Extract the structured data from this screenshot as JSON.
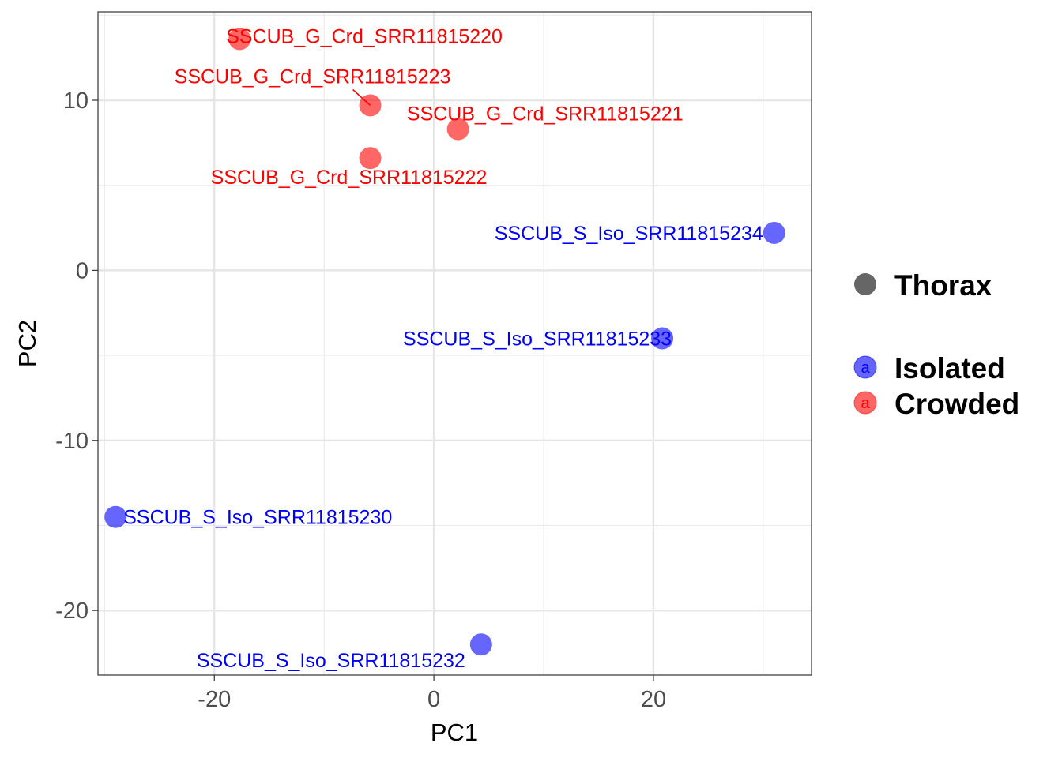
{
  "chart_data": {
    "type": "scatter",
    "title": "",
    "xlabel": "PC1",
    "ylabel": "PC2",
    "xlim": [
      -30.6,
      34.4
    ],
    "ylim": [
      -23.8,
      15.2
    ],
    "x_ticks": [
      -20,
      0,
      20
    ],
    "y_ticks": [
      -20,
      -10,
      0,
      10
    ],
    "x_tick_labels": [
      "-20",
      "0",
      "20"
    ],
    "y_tick_labels": [
      "-20",
      "-10",
      "0",
      "10"
    ],
    "grid": true,
    "shape_legend": {
      "title": "",
      "entries": [
        "Thorax"
      ]
    },
    "color_legend": {
      "entries": [
        {
          "name": "Isolated",
          "color": "#0000ff",
          "key_letter": "a"
        },
        {
          "name": "Crowded",
          "color": "#ff0000",
          "key_letter": "a"
        }
      ]
    },
    "legend_position": "right",
    "point_alpha": 0.6,
    "points": [
      {
        "label": "SSCUB_G_Crd_SRR11815220",
        "x": -17.7,
        "y": 13.6,
        "group": "Crowded"
      },
      {
        "label": "SSCUB_G_Crd_SRR11815223",
        "x": -5.8,
        "y": 9.7,
        "group": "Crowded"
      },
      {
        "label": "SSCUB_G_Crd_SRR11815221",
        "x": 2.2,
        "y": 8.3,
        "group": "Crowded"
      },
      {
        "label": "SSCUB_G_Crd_SRR11815222",
        "x": -5.8,
        "y": 6.6,
        "group": "Crowded"
      },
      {
        "label": "SSCUB_S_Iso_SRR11815234",
        "x": 31.0,
        "y": 2.2,
        "group": "Isolated"
      },
      {
        "label": "SSCUB_S_Iso_SRR11815233",
        "x": 20.8,
        "y": -4.0,
        "group": "Isolated"
      },
      {
        "label": "SSCUB_S_Iso_SRR11815230",
        "x": -29.0,
        "y": -14.5,
        "group": "Isolated"
      },
      {
        "label": "SSCUB_S_Iso_SRR11815232",
        "x": 4.3,
        "y": -22.0,
        "group": "Isolated"
      }
    ]
  }
}
